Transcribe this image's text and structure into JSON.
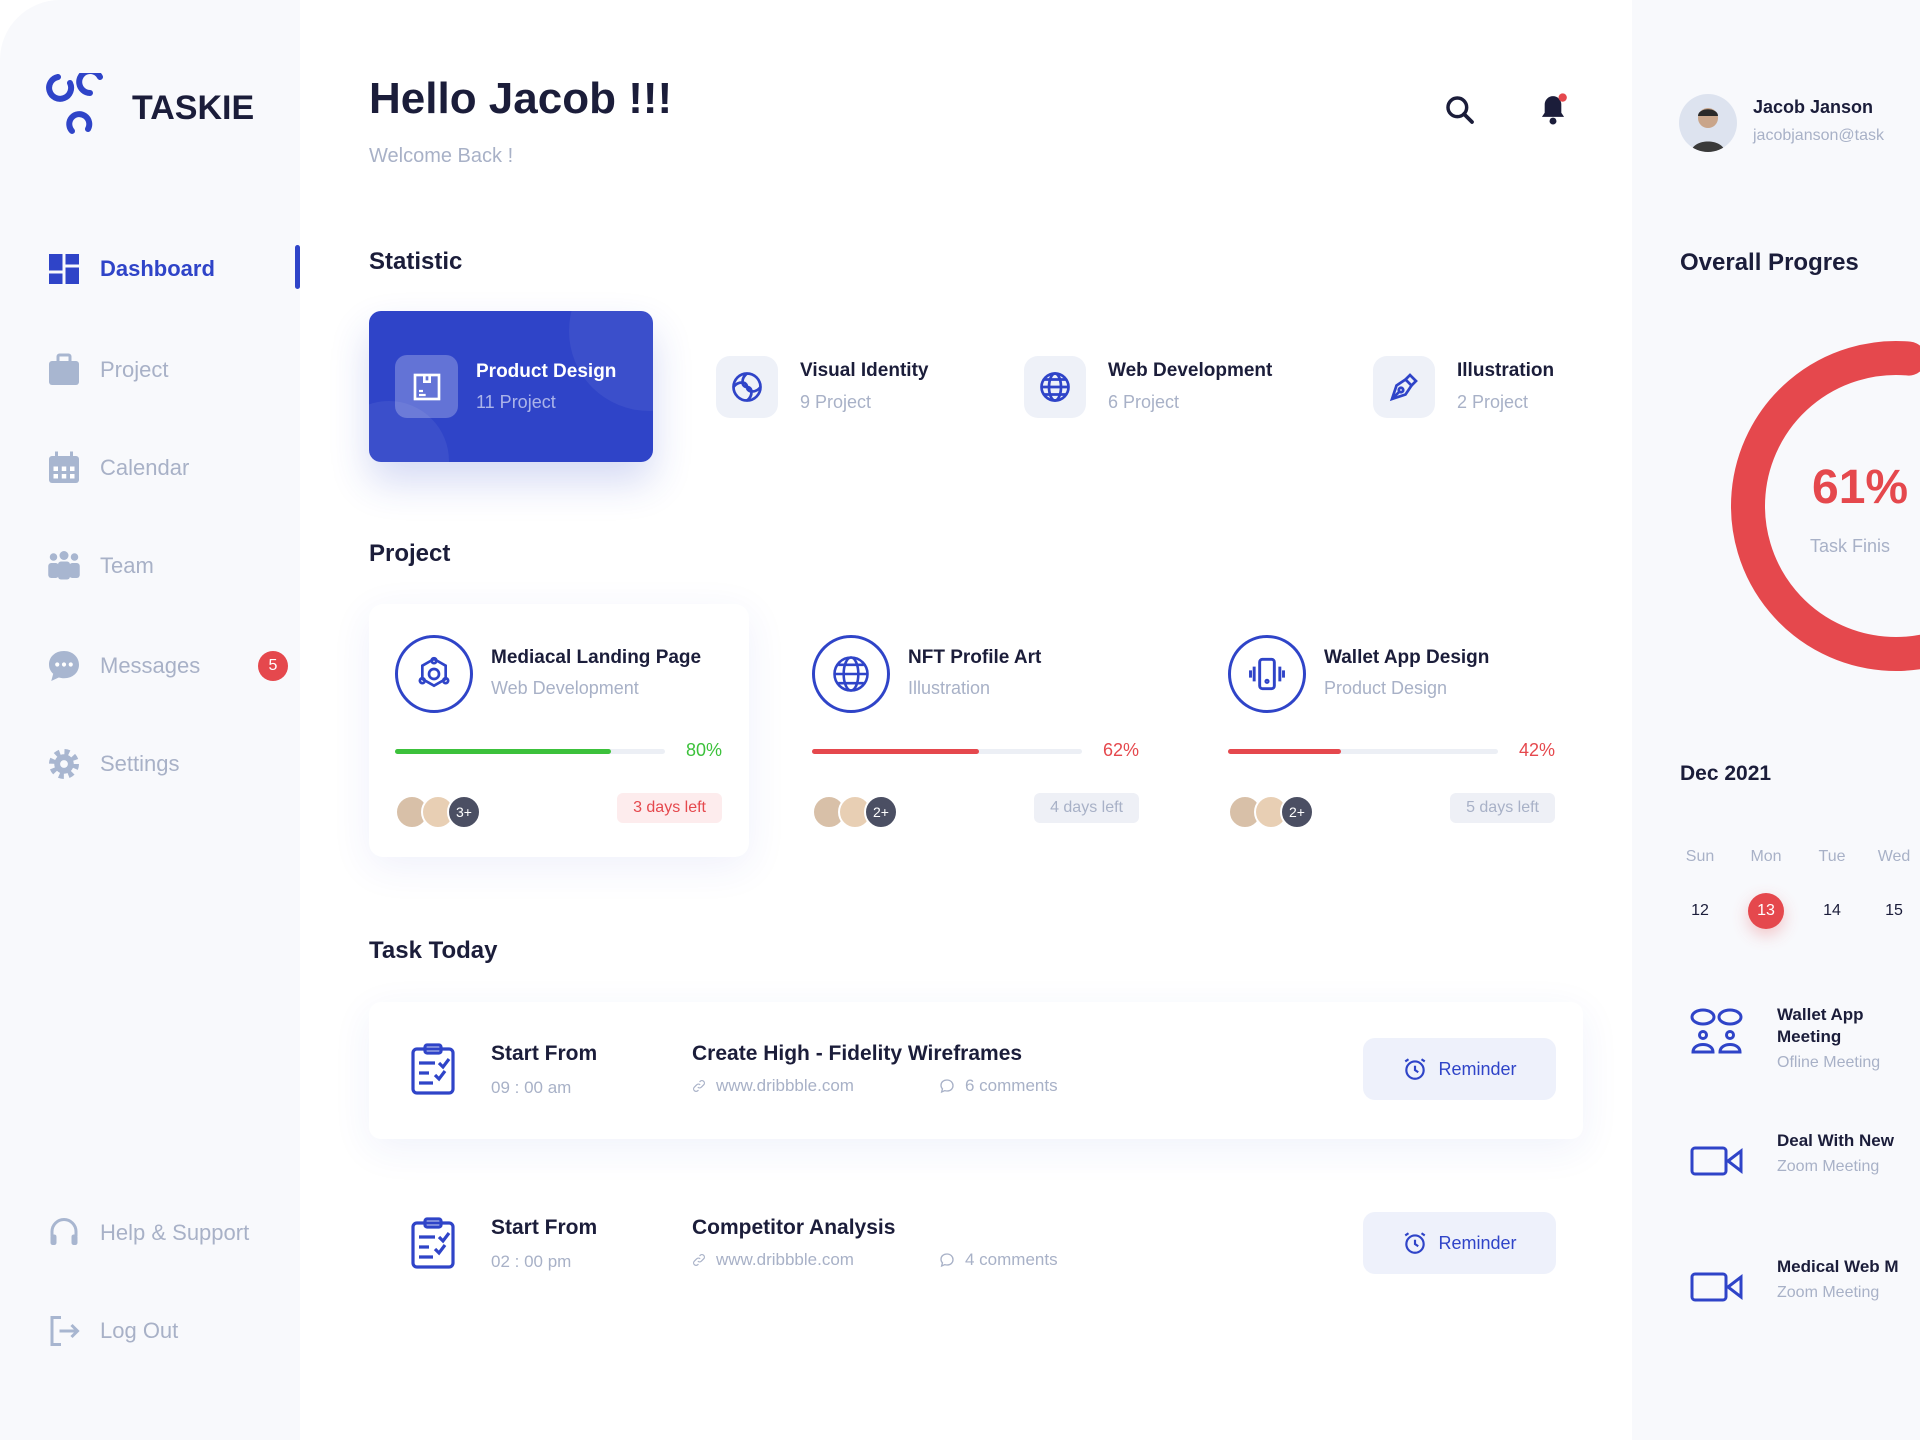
{
  "brand": {
    "name": "TASKIE",
    "color": "#2f44c8"
  },
  "sidebar": {
    "items": [
      {
        "label": "Dashboard",
        "icon": "grid-icon",
        "active": true
      },
      {
        "label": "Project",
        "icon": "briefcase-icon"
      },
      {
        "label": "Calendar",
        "icon": "calendar-icon"
      },
      {
        "label": "Team",
        "icon": "team-icon"
      },
      {
        "label": "Messages",
        "icon": "chat-icon",
        "badge": "5"
      },
      {
        "label": "Settings",
        "icon": "gear-icon"
      }
    ],
    "bottom": [
      {
        "label": "Help & Support",
        "icon": "headset-icon"
      },
      {
        "label": "Log Out",
        "icon": "logout-icon"
      }
    ]
  },
  "header": {
    "title": "Hello Jacob !!!",
    "subtitle": "Welcome Back !"
  },
  "user": {
    "name": "Jacob Janson",
    "email": "jacobjanson@task"
  },
  "statistic": {
    "title": "Statistic",
    "items": [
      {
        "name": "Product Design",
        "count": "11 Project",
        "icon": "box-icon",
        "active": true
      },
      {
        "name": "Visual Identity",
        "count": "9 Project",
        "icon": "spiral-icon"
      },
      {
        "name": "Web Development",
        "count": "6 Project",
        "icon": "globe-icon"
      },
      {
        "name": "Illustration",
        "count": "2 Project",
        "icon": "pen-nib-icon"
      }
    ]
  },
  "project": {
    "title": "Project",
    "items": [
      {
        "name": "Mediacal Landing Page",
        "category": "Web Development",
        "progress": 80,
        "progress_label": "80%",
        "color": "#3cc13b",
        "more": "3+",
        "days": "3 days left",
        "urgent": true
      },
      {
        "name": "NFT Profile Art",
        "category": "Illustration",
        "progress": 62,
        "progress_label": "62%",
        "color": "#e5484d",
        "more": "2+",
        "days": "4 days left"
      },
      {
        "name": "Wallet App Design",
        "category": "Product Design",
        "progress": 42,
        "progress_label": "42%",
        "color": "#e5484d",
        "more": "2+",
        "days": "5 days left"
      }
    ]
  },
  "tasks": {
    "title": "Task Today",
    "items": [
      {
        "label": "Start From",
        "time": "09 : 00 am",
        "title": "Create High - Fidelity Wireframes",
        "link": "www.dribbble.com",
        "comments": "6 comments",
        "button": "Reminder"
      },
      {
        "label": "Start From",
        "time": "02 : 00 pm",
        "title": "Competitor Analysis",
        "link": "www.dribbble.com",
        "comments": "4 comments",
        "button": "Reminder"
      }
    ]
  },
  "progress": {
    "title": "Overall Progres",
    "value": 61,
    "value_label": "61%",
    "caption": "Task Finis",
    "color": "#e5484d"
  },
  "calendar": {
    "month": "Dec 2021",
    "days": [
      {
        "dow": "Sun",
        "num": "12"
      },
      {
        "dow": "Mon",
        "num": "13",
        "selected": true
      },
      {
        "dow": "Tue",
        "num": "14"
      },
      {
        "dow": "Wed",
        "num": "15"
      }
    ]
  },
  "events": [
    {
      "title": "Wallet App Meeting",
      "subtitle": "Ofline Meeting",
      "icon": "people-chat-icon"
    },
    {
      "title": "Deal With New",
      "subtitle": "Zoom Meeting",
      "icon": "video-camera-icon"
    },
    {
      "title": "Medical Web M",
      "subtitle": "Zoom Meeting",
      "icon": "video-camera-icon"
    }
  ]
}
